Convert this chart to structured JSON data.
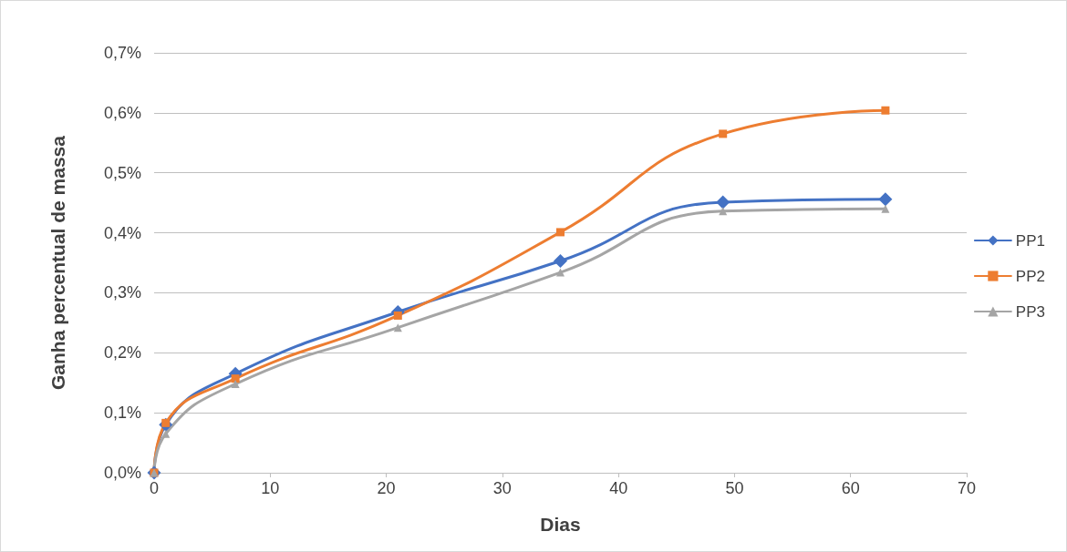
{
  "chart_data": {
    "type": "line",
    "xlabel": "Dias",
    "ylabel": "Ganha percentual de massa",
    "x": [
      0,
      1,
      7,
      21,
      35,
      49,
      63
    ],
    "series": [
      {
        "name": "PP1",
        "color": "#4472c4",
        "marker": "diamond",
        "values": [
          0,
          0.08,
          0.165,
          0.268,
          0.353,
          0.451,
          0.456
        ]
      },
      {
        "name": "PP2",
        "color": "#ed7d31",
        "marker": "square",
        "values": [
          0,
          0.083,
          0.157,
          0.262,
          0.401,
          0.565,
          0.604
        ]
      },
      {
        "name": "PP3",
        "color": "#a5a5a5",
        "marker": "triangle",
        "values": [
          0,
          0.065,
          0.148,
          0.242,
          0.334,
          0.436,
          0.44
        ]
      }
    ],
    "xlim": [
      0,
      70
    ],
    "xticks": [
      0,
      10,
      20,
      30,
      40,
      50,
      60,
      70
    ],
    "ylim": [
      0,
      0.7
    ],
    "yticks": [
      {
        "value": 0,
        "label": "0,0%"
      },
      {
        "value": 0.1,
        "label": "0,1%"
      },
      {
        "value": 0.2,
        "label": "0,2%"
      },
      {
        "value": 0.3,
        "label": "0,3%"
      },
      {
        "value": 0.4,
        "label": "0,4%"
      },
      {
        "value": 0.5,
        "label": "0,5%"
      },
      {
        "value": 0.6,
        "label": "0,6%"
      },
      {
        "value": 0.7,
        "label": "0,7%"
      }
    ],
    "grid": "y",
    "legend": "right",
    "line_style": "solid"
  }
}
